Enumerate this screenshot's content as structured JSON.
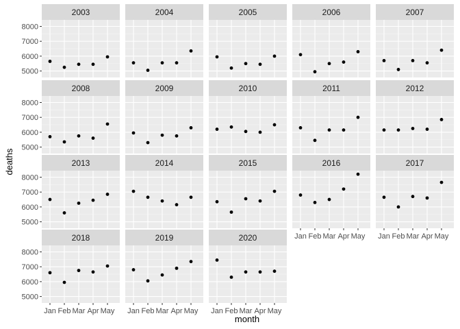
{
  "chart_data": {
    "type": "scatter",
    "facet_by": "year",
    "xlabel": "month",
    "ylabel": "deaths",
    "categories": [
      "Jan",
      "Feb",
      "Mar",
      "Apr",
      "May"
    ],
    "ncol": 5,
    "y_breaks": [
      5000,
      6000,
      7000,
      8000
    ],
    "facet_scales": "free_x",
    "grid": true,
    "colors": {
      "panel_bg": "#ebebeb",
      "strip_bg": "#d9d9d9",
      "grid_major": "#ffffff",
      "grid_minor": "#f5f5f5",
      "point": "#000000"
    },
    "facets": [
      {
        "year": "2003",
        "values": [
          5650,
          5250,
          5450,
          5450,
          5950
        ]
      },
      {
        "year": "2004",
        "values": [
          5550,
          5050,
          5550,
          5550,
          6350
        ]
      },
      {
        "year": "2005",
        "values": [
          5950,
          5200,
          5500,
          5450,
          6000
        ]
      },
      {
        "year": "2006",
        "values": [
          6100,
          4950,
          5500,
          5600,
          6300
        ]
      },
      {
        "year": "2007",
        "values": [
          5700,
          5100,
          5700,
          5550,
          6400
        ]
      },
      {
        "year": "2008",
        "values": [
          5700,
          5350,
          5750,
          5600,
          6550
        ]
      },
      {
        "year": "2009",
        "values": [
          5950,
          5300,
          5800,
          5750,
          6300
        ]
      },
      {
        "year": "2010",
        "values": [
          6200,
          6350,
          6050,
          6000,
          6500
        ]
      },
      {
        "year": "2011",
        "values": [
          6300,
          5450,
          6150,
          6150,
          7000
        ]
      },
      {
        "year": "2012",
        "values": [
          6150,
          6150,
          6250,
          6200,
          6850
        ]
      },
      {
        "year": "2013",
        "values": [
          6500,
          5600,
          6250,
          6450,
          6850
        ]
      },
      {
        "year": "2014",
        "values": [
          7050,
          6650,
          6400,
          6150,
          6650
        ]
      },
      {
        "year": "2015",
        "values": [
          6350,
          5650,
          6550,
          6400,
          7050
        ]
      },
      {
        "year": "2016",
        "values": [
          6800,
          6300,
          6500,
          7200,
          8200
        ]
      },
      {
        "year": "2017",
        "values": [
          6650,
          6000,
          6700,
          6600,
          7650
        ]
      },
      {
        "year": "2018",
        "values": [
          6600,
          5950,
          6750,
          6650,
          7050
        ]
      },
      {
        "year": "2019",
        "values": [
          6800,
          6050,
          6450,
          6900,
          7350
        ]
      },
      {
        "year": "2020",
        "values": [
          7450,
          6300,
          6650,
          6650,
          6700
        ]
      }
    ]
  }
}
